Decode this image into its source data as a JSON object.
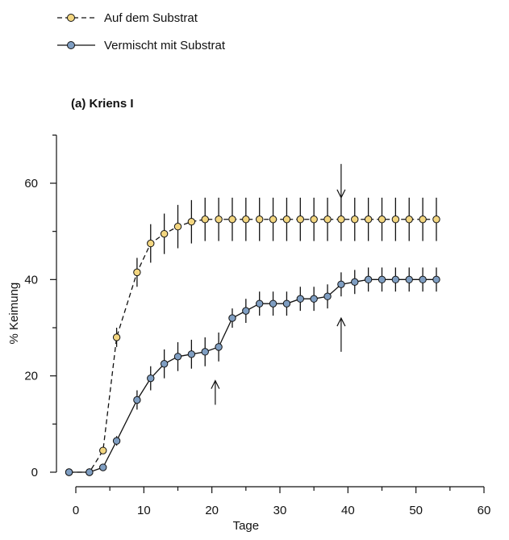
{
  "chart_data": {
    "type": "line",
    "title": "(a) Kriens I",
    "xlabel": "Tage",
    "ylabel": "% Keimung",
    "xlim": [
      -2,
      60
    ],
    "ylim": [
      -2,
      70
    ],
    "xticks": [
      0,
      10,
      20,
      30,
      40,
      50,
      60
    ],
    "xticks_minor": [
      5,
      15,
      25,
      35,
      45,
      55
    ],
    "yticks": [
      0,
      20,
      40,
      60
    ],
    "yticks_minor": [
      10,
      30,
      50,
      70
    ],
    "grid": false,
    "legend": "top-left",
    "series": [
      {
        "name": "Auf dem Substrat",
        "line_style": "dashed",
        "marker_color": "#f3d680",
        "x": [
          -1,
          2,
          4,
          6,
          9,
          11,
          13,
          15,
          17,
          19,
          21,
          23,
          25,
          27,
          29,
          31,
          33,
          35,
          37,
          39,
          41,
          43,
          45,
          47,
          49,
          51,
          53
        ],
        "y": [
          0,
          0,
          4.5,
          28,
          41.5,
          47.5,
          49.5,
          51,
          52,
          52.5,
          52.5,
          52.5,
          52.5,
          52.5,
          52.5,
          52.5,
          52.5,
          52.5,
          52.5,
          52.5,
          52.5,
          52.5,
          52.5,
          52.5,
          52.5,
          52.5,
          52.5
        ],
        "err": [
          0,
          0,
          0.5,
          2,
          3,
          4,
          4.2,
          4.5,
          4.5,
          4.5,
          4.5,
          4.5,
          4.5,
          4.5,
          4.5,
          4.5,
          4.5,
          4.5,
          4.5,
          4.5,
          4.5,
          4.5,
          4.5,
          4.5,
          4.5,
          4.5,
          4.5
        ]
      },
      {
        "name": "Vermischt mit Substrat",
        "line_style": "solid",
        "marker_color": "#7f9ec2",
        "x": [
          -1,
          2,
          4,
          6,
          9,
          11,
          13,
          15,
          17,
          19,
          21,
          23,
          25,
          27,
          29,
          31,
          33,
          35,
          37,
          39,
          41,
          43,
          45,
          47,
          49,
          51,
          53
        ],
        "y": [
          0,
          0,
          1,
          6.5,
          15,
          19.5,
          22.5,
          24,
          24.5,
          25,
          26,
          32,
          33.5,
          35,
          35,
          35,
          36,
          36,
          36.5,
          39,
          39.5,
          40,
          40,
          40,
          40,
          40,
          40
        ],
        "err": [
          0,
          0,
          0.5,
          1,
          2,
          2.5,
          3,
          3,
          3,
          3,
          3,
          2,
          2.5,
          2.5,
          2.5,
          2.5,
          2.5,
          2.5,
          2.5,
          2.5,
          2.5,
          2.5,
          2.5,
          2.5,
          2.5,
          2.5,
          2.5
        ]
      }
    ],
    "annotations": [
      {
        "type": "arrow-down",
        "x": 39,
        "y_from": 64,
        "y_to": 57
      },
      {
        "type": "arrow-up",
        "x": 20.5,
        "y_from": 14,
        "y_to": 19
      },
      {
        "type": "arrow-up",
        "x": 39,
        "y_from": 25,
        "y_to": 32
      }
    ]
  }
}
